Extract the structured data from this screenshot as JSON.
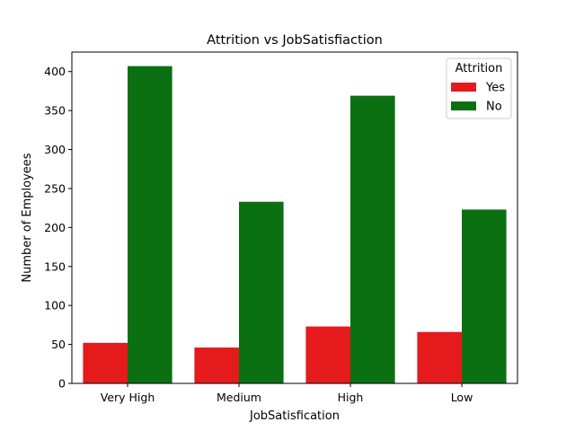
{
  "chart_data": {
    "type": "bar",
    "title": "Attrition vs JobSatisfiaction",
    "xlabel": "JobSatisfication",
    "ylabel": "Number of Employees",
    "categories": [
      "Very High",
      "Medium",
      "High",
      "Low"
    ],
    "series": [
      {
        "name": "Yes",
        "color": "#e41a1c",
        "values": [
          52,
          46,
          73,
          66
        ]
      },
      {
        "name": "No",
        "color": "#0b7012",
        "values": [
          407,
          233,
          369,
          223
        ]
      }
    ],
    "ylim": [
      0,
      425
    ],
    "yticks": [
      0,
      50,
      100,
      150,
      200,
      250,
      300,
      350,
      400
    ],
    "grid": false,
    "legend": {
      "title": "Attrition",
      "placement": "top-right"
    }
  }
}
